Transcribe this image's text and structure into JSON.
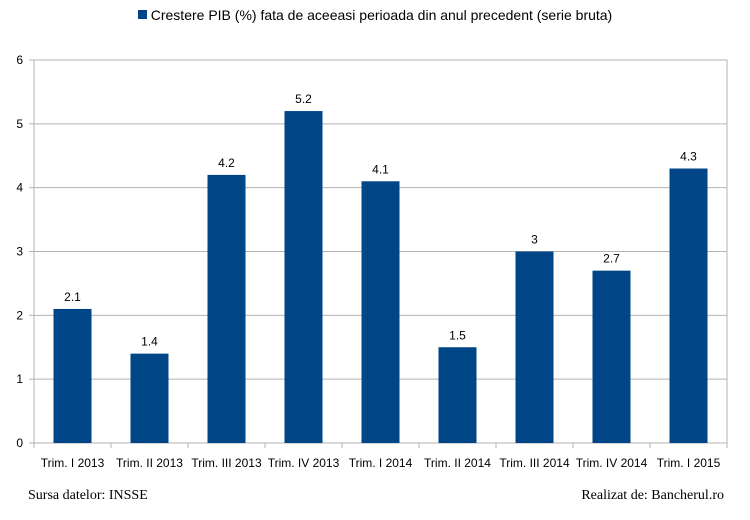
{
  "chart_data": {
    "type": "bar",
    "categories": [
      "Trim. I 2013",
      "Trim. II 2013",
      "Trim. III 2013",
      "Trim. IV 2013",
      "Trim. I 2014",
      "Trim. II 2014",
      "Trim. III 2014",
      "Trim. IV 2014",
      "Trim. I 2015"
    ],
    "series": [
      {
        "name": "Crestere PIB (%) fata de aceeasi perioada din anul precedent (serie bruta)",
        "values": [
          2.1,
          1.4,
          4.2,
          5.2,
          4.1,
          1.5,
          3,
          2.7,
          4.3
        ],
        "labels": [
          "2.1",
          "1.4",
          "4.2",
          "5.2",
          "4.1",
          "1.5",
          "3",
          "2.7",
          "4.3"
        ]
      }
    ],
    "ylim": [
      0,
      6
    ],
    "yticks": [
      0,
      1,
      2,
      3,
      4,
      5,
      6
    ],
    "grid": true,
    "legend_position": "top",
    "bar_color": "#004586",
    "grid_color": "#b3b3b3"
  },
  "footer": {
    "source": "Sursa datelor: INSSE",
    "credit": "Realizat de: Bancherul.ro"
  }
}
